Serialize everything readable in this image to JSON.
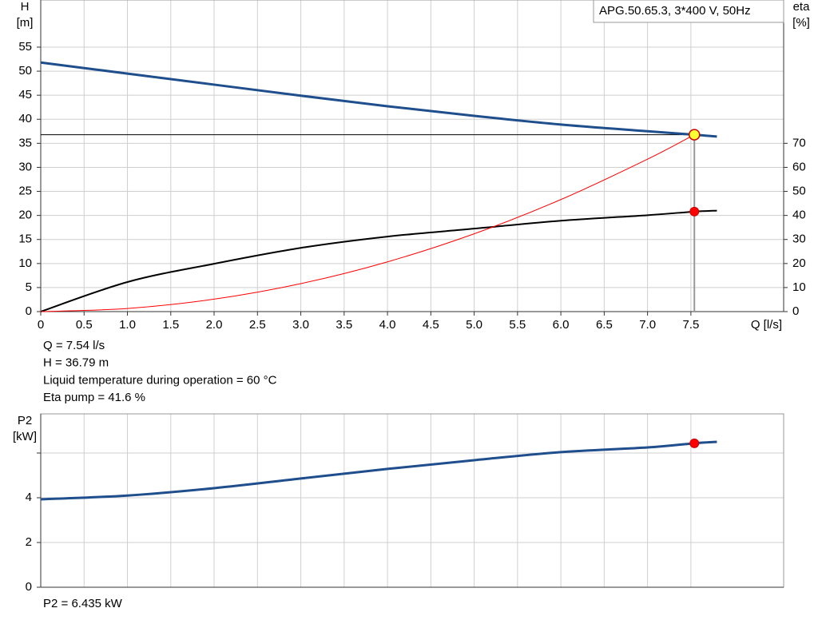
{
  "chart_data": [
    {
      "type": "line",
      "title": "APG.50.65.3, 3*400 V, 50Hz",
      "xlabel": "Q [l/s]",
      "ylabel": "H",
      "yunit": "[m]",
      "y2label": "eta",
      "y2unit": "[%]",
      "x": [
        0,
        1,
        2,
        3,
        4,
        5,
        6,
        7,
        7.54,
        7.8
      ],
      "series": [
        {
          "color": "#1f4e8c",
          "values": [
            51.8,
            49.5,
            47.2,
            44.9,
            42.7,
            40.7,
            38.9,
            37.5,
            36.79,
            36.4
          ]
        },
        {
          "color": "#000000",
          "axis": "y2",
          "values": [
            0,
            12.3,
            19.9,
            26.5,
            31.2,
            34.5,
            37.8,
            40.1,
            41.6,
            42
          ]
        },
        {
          "color": "#ff0000",
          "values": [
            0,
            0.65,
            2.59,
            5.82,
            10.35,
            16.18,
            23.3,
            31.7,
            36.79,
            null
          ]
        }
      ],
      "xlim": [
        0,
        8.57
      ],
      "xticks": [
        0,
        0.5,
        {
          "value": 1,
          "label": "1.0"
        },
        1.5,
        {
          "value": 2,
          "label": "2.0"
        },
        2.5,
        {
          "value": 3,
          "label": "3.0"
        },
        3.5,
        {
          "value": 4,
          "label": "4.0"
        },
        4.5,
        {
          "value": 5,
          "label": "5.0"
        },
        5.5,
        {
          "value": 6,
          "label": "6.0"
        },
        6.5,
        {
          "value": 7,
          "label": "7.0"
        },
        7.5
      ],
      "ylim": [
        0,
        64.8
      ],
      "yticks": [
        0,
        5,
        10,
        15,
        20,
        25,
        30,
        35,
        40,
        45,
        50,
        55
      ],
      "y2lim": [
        0,
        129.6
      ],
      "y2ticks": [
        0,
        10,
        20,
        30,
        40,
        50,
        60,
        70
      ],
      "grid": true,
      "operating_point": {
        "x": 7.54,
        "y": 36.79,
        "eta": 41.6
      },
      "annotations": [
        "Q = 7.54 l/s",
        "H = 36.79 m",
        "Liquid temperature during operation = 60 °C",
        "Eta pump = 41.6 %"
      ]
    },
    {
      "type": "line",
      "ylabel": "P2",
      "yunit": "[kW]",
      "x": [
        0,
        1,
        2,
        3,
        4,
        5,
        6,
        7,
        7.54,
        7.8
      ],
      "series": [
        {
          "color": "#1f4e8c",
          "values": [
            3.93,
            4.1,
            4.43,
            4.86,
            5.29,
            5.68,
            6.04,
            6.25,
            6.435,
            6.5
          ]
        }
      ],
      "xlim": [
        0,
        8.57
      ],
      "ylim": [
        0,
        7.75
      ],
      "yticks": [
        0,
        2,
        4,
        {
          "value": 6,
          "label": null
        }
      ],
      "grid": true,
      "operating_point": {
        "x": 7.54,
        "y": 6.435
      },
      "annotations": [
        "P2 = 6.435 kW"
      ]
    }
  ]
}
